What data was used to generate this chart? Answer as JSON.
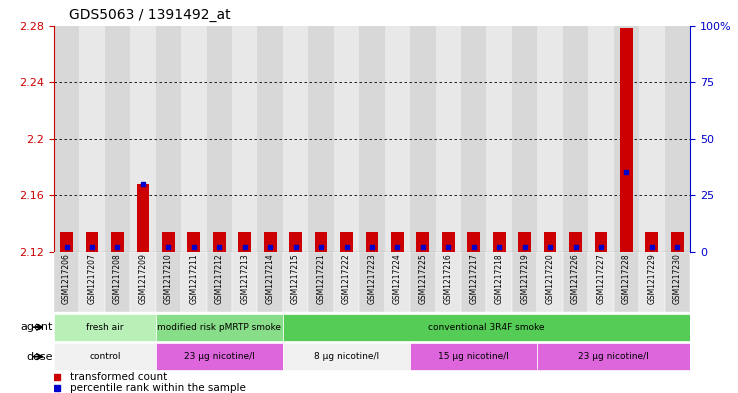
{
  "title": "GDS5063 / 1391492_at",
  "samples": [
    "GSM1217206",
    "GSM1217207",
    "GSM1217208",
    "GSM1217209",
    "GSM1217210",
    "GSM1217211",
    "GSM1217212",
    "GSM1217213",
    "GSM1217214",
    "GSM1217215",
    "GSM1217221",
    "GSM1217222",
    "GSM1217223",
    "GSM1217224",
    "GSM1217225",
    "GSM1217216",
    "GSM1217217",
    "GSM1217218",
    "GSM1217219",
    "GSM1217220",
    "GSM1217226",
    "GSM1217227",
    "GSM1217228",
    "GSM1217229",
    "GSM1217230"
  ],
  "red_values": [
    2.134,
    2.134,
    2.134,
    2.168,
    2.134,
    2.134,
    2.134,
    2.134,
    2.134,
    2.134,
    2.134,
    2.134,
    2.134,
    2.134,
    2.134,
    2.134,
    2.134,
    2.134,
    2.134,
    2.134,
    2.134,
    2.134,
    2.278,
    2.134,
    2.134
  ],
  "blue_pct": [
    2,
    2,
    2,
    30,
    2,
    2,
    2,
    2,
    2,
    2,
    2,
    2,
    2,
    2,
    2,
    2,
    2,
    2,
    2,
    2,
    2,
    2,
    35,
    2,
    2
  ],
  "ymin": 2.12,
  "ymax": 2.28,
  "yticks": [
    2.12,
    2.16,
    2.2,
    2.24,
    2.28
  ],
  "ytick_labels": [
    "2.12",
    "2.16",
    "2.2",
    "2.24",
    "2.28"
  ],
  "right_yticks": [
    0,
    25,
    50,
    75,
    100
  ],
  "right_ytick_labels": [
    "0",
    "25",
    "50",
    "75",
    "100%"
  ],
  "agent_defs": [
    [
      0,
      4,
      "#b8f0b8",
      "fresh air"
    ],
    [
      4,
      9,
      "#88dd88",
      "modified risk pMRTP smoke"
    ],
    [
      9,
      25,
      "#55cc55",
      "conventional 3R4F smoke"
    ]
  ],
  "dose_defs": [
    [
      0,
      4,
      "#f0f0f0",
      "control"
    ],
    [
      4,
      9,
      "#dd66dd",
      "23 μg nicotine/l"
    ],
    [
      9,
      14,
      "#f0f0f0",
      "8 μg nicotine/l"
    ],
    [
      14,
      19,
      "#dd66dd",
      "15 μg nicotine/l"
    ],
    [
      19,
      25,
      "#dd66dd",
      "23 μg nicotine/l"
    ]
  ],
  "bar_color": "#cc0000",
  "blue_color": "#0000cc",
  "left_axis_color": "#cc0000",
  "right_axis_color": "#0000cc",
  "xtick_bg_even": "#d8d8d8",
  "xtick_bg_odd": "#e8e8e8"
}
